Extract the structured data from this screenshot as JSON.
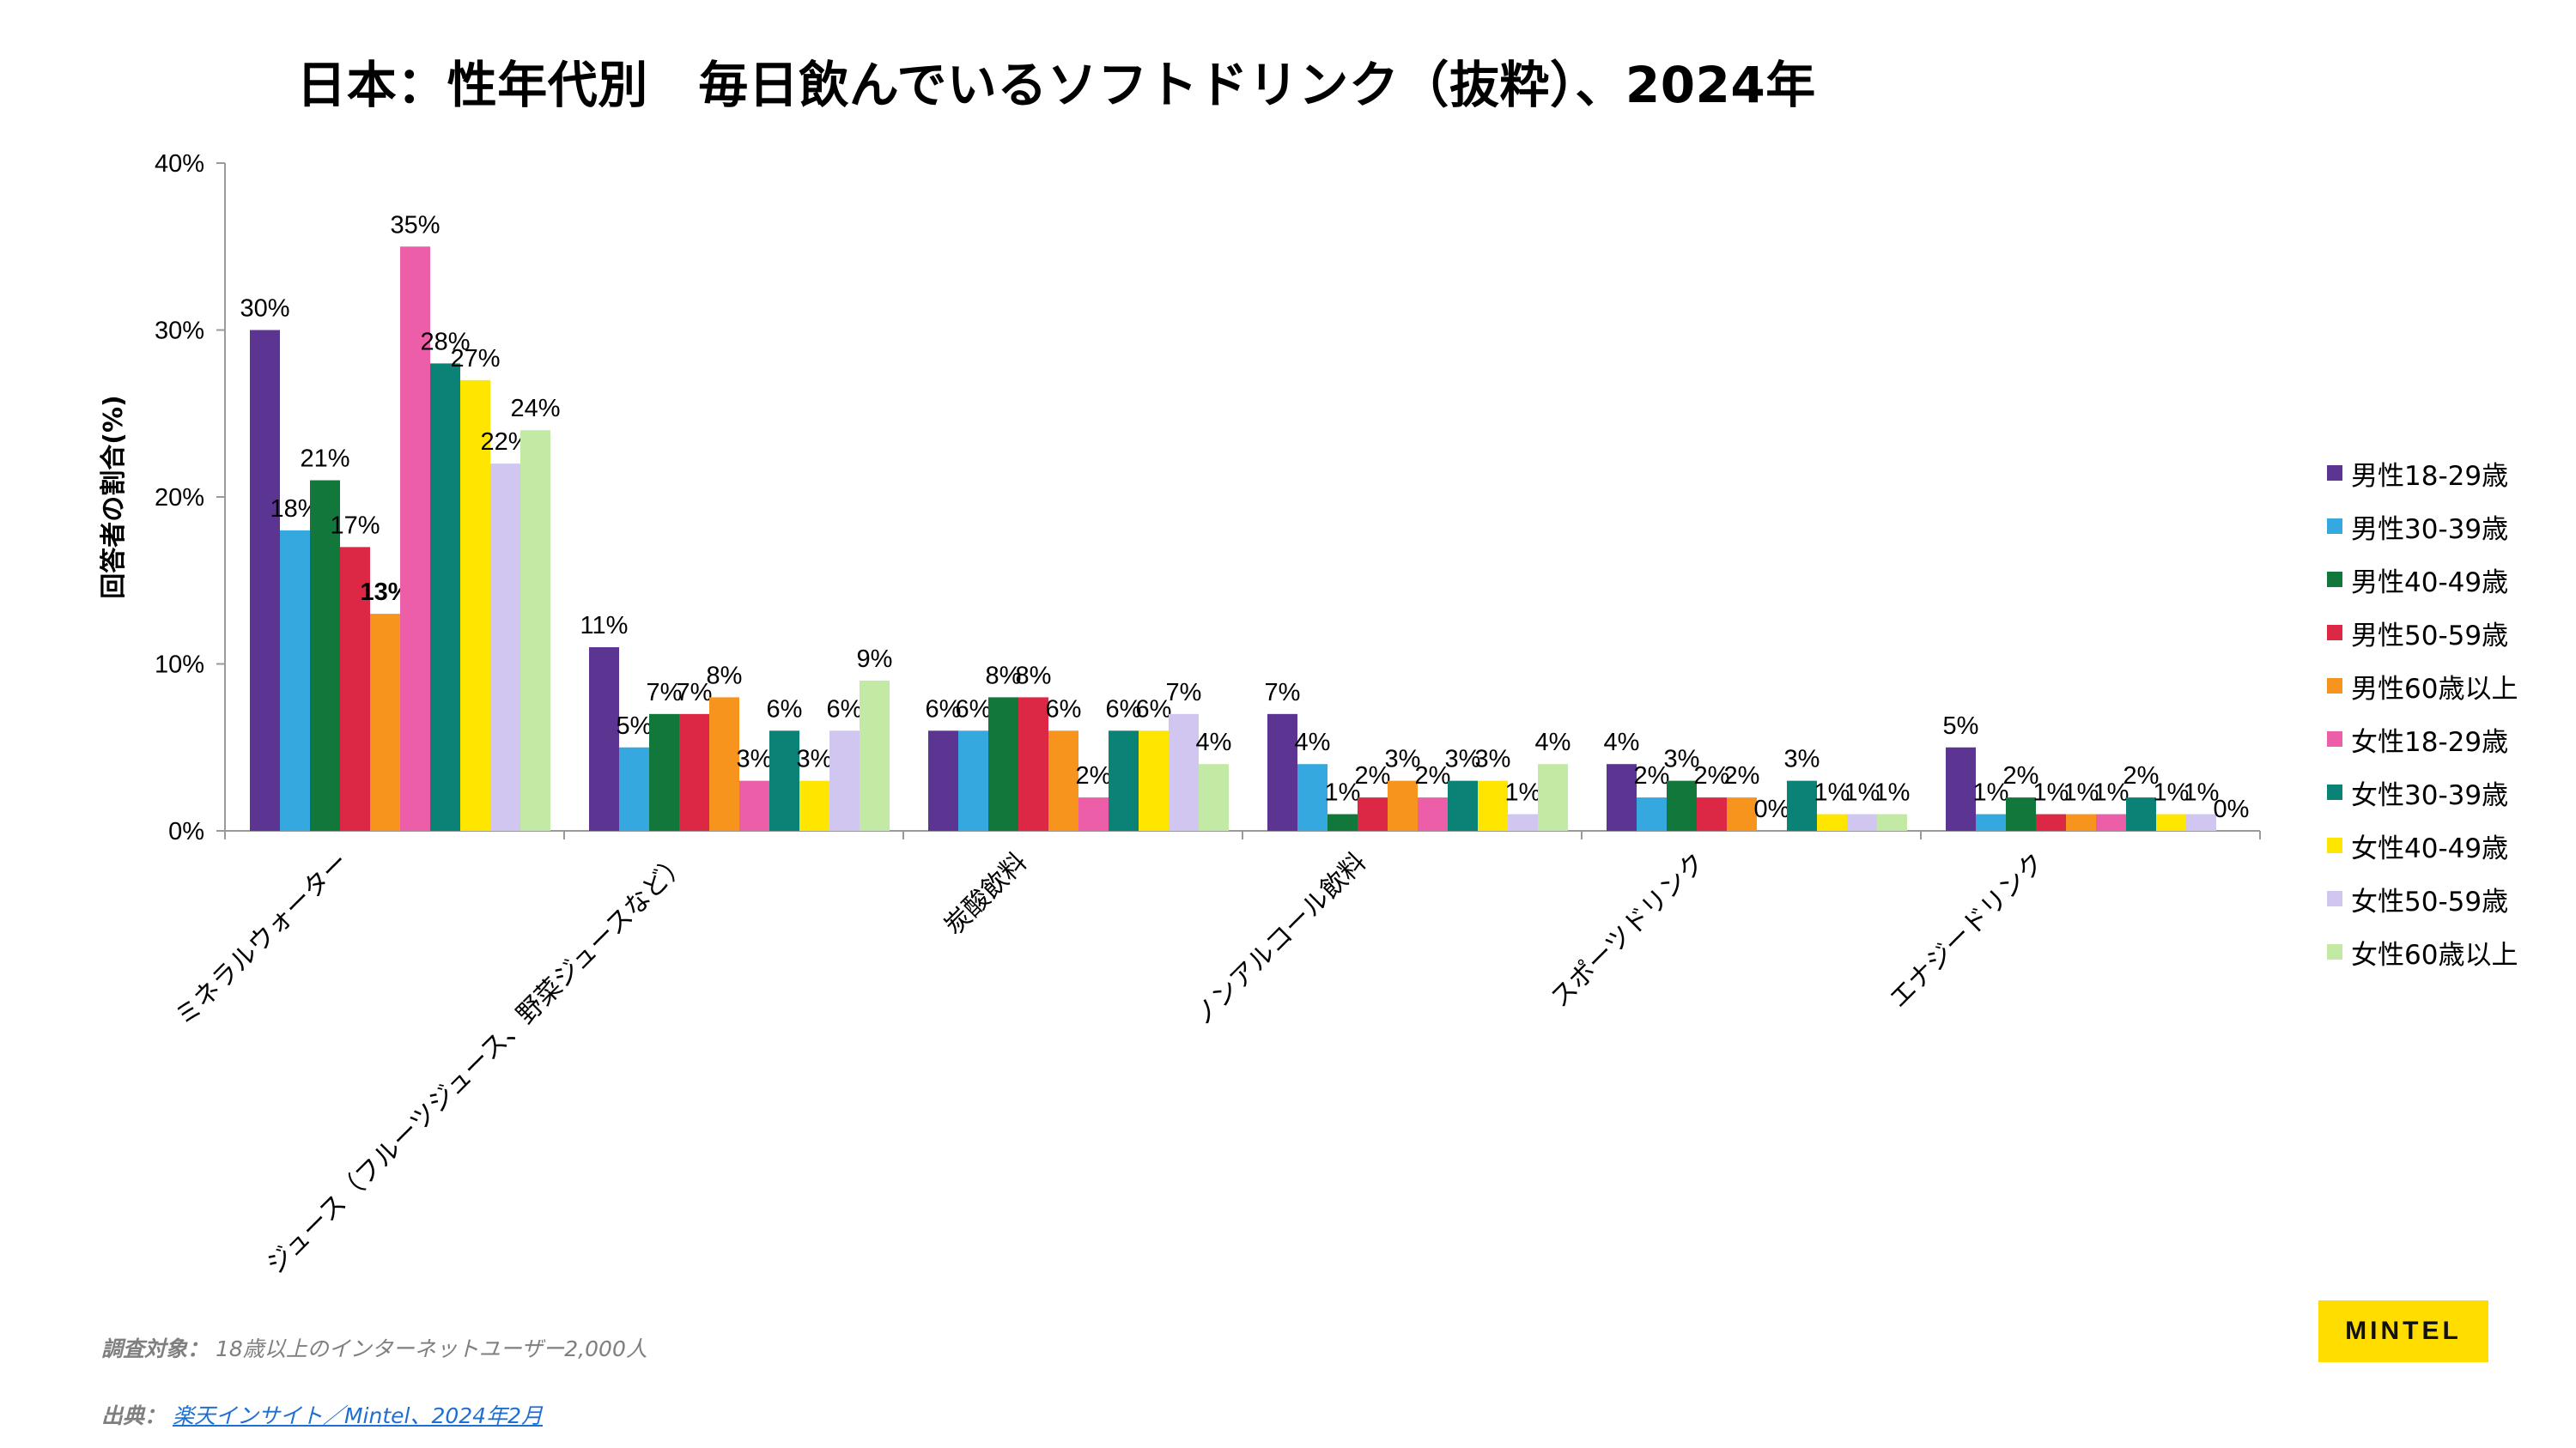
{
  "title": "日本：性年代別　毎日飲んでいるソフトドリンク（抜粋）、2024年",
  "footnote": {
    "label": "調査対象：",
    "text": " 18歳以上のインターネットユーザー2,000人"
  },
  "source": {
    "label": "出典：",
    "text": "楽天インサイト／Mintel、2024年2月"
  },
  "brand": "MINTEL",
  "chart_data": {
    "type": "bar",
    "ylabel": "回答者の割合(%)",
    "ylim": [
      0,
      40
    ],
    "yticks": [
      "0%",
      "10%",
      "20%",
      "30%",
      "40%"
    ],
    "grid": false,
    "legend_position": "right",
    "categories": [
      "ミネラルウォーター",
      "ジュース（フルーツジュース、野菜ジュースなど）",
      "炭酸飲料",
      "ノンアルコール飲料",
      "スポーツドリンク",
      "エナジードリンク"
    ],
    "series": [
      {
        "name": "男性18-29歳",
        "color": "#5b3591",
        "values": [
          30,
          11,
          6,
          7,
          4,
          5
        ]
      },
      {
        "name": "男性30-39歳",
        "color": "#35a8e0",
        "values": [
          18,
          5,
          6,
          4,
          2,
          1
        ]
      },
      {
        "name": "男性40-49歳",
        "color": "#11773a",
        "values": [
          21,
          7,
          8,
          1,
          3,
          2
        ]
      },
      {
        "name": "男性50-59歳",
        "color": "#dc2845",
        "values": [
          17,
          7,
          8,
          2,
          2,
          1
        ]
      },
      {
        "name": "男性60歳以上",
        "color": "#f7941d",
        "values": [
          13,
          8,
          6,
          3,
          2,
          1
        ]
      },
      {
        "name": "女性18-29歳",
        "color": "#ec5fa8",
        "values": [
          35,
          3,
          2,
          2,
          0,
          1
        ]
      },
      {
        "name": "女性30-39歳",
        "color": "#0a8275",
        "values": [
          28,
          6,
          6,
          3,
          3,
          2
        ]
      },
      {
        "name": "女性40-49歳",
        "color": "#ffe600",
        "values": [
          27,
          3,
          6,
          3,
          1,
          1
        ]
      },
      {
        "name": "女性50-59歳",
        "color": "#d0c6f0",
        "values": [
          22,
          6,
          7,
          1,
          1,
          1
        ]
      },
      {
        "name": "女性60歳以上",
        "color": "#c3eaa4",
        "values": [
          24,
          9,
          4,
          4,
          1,
          0
        ]
      }
    ],
    "bold_labels": [
      [
        0,
        4
      ]
    ]
  }
}
